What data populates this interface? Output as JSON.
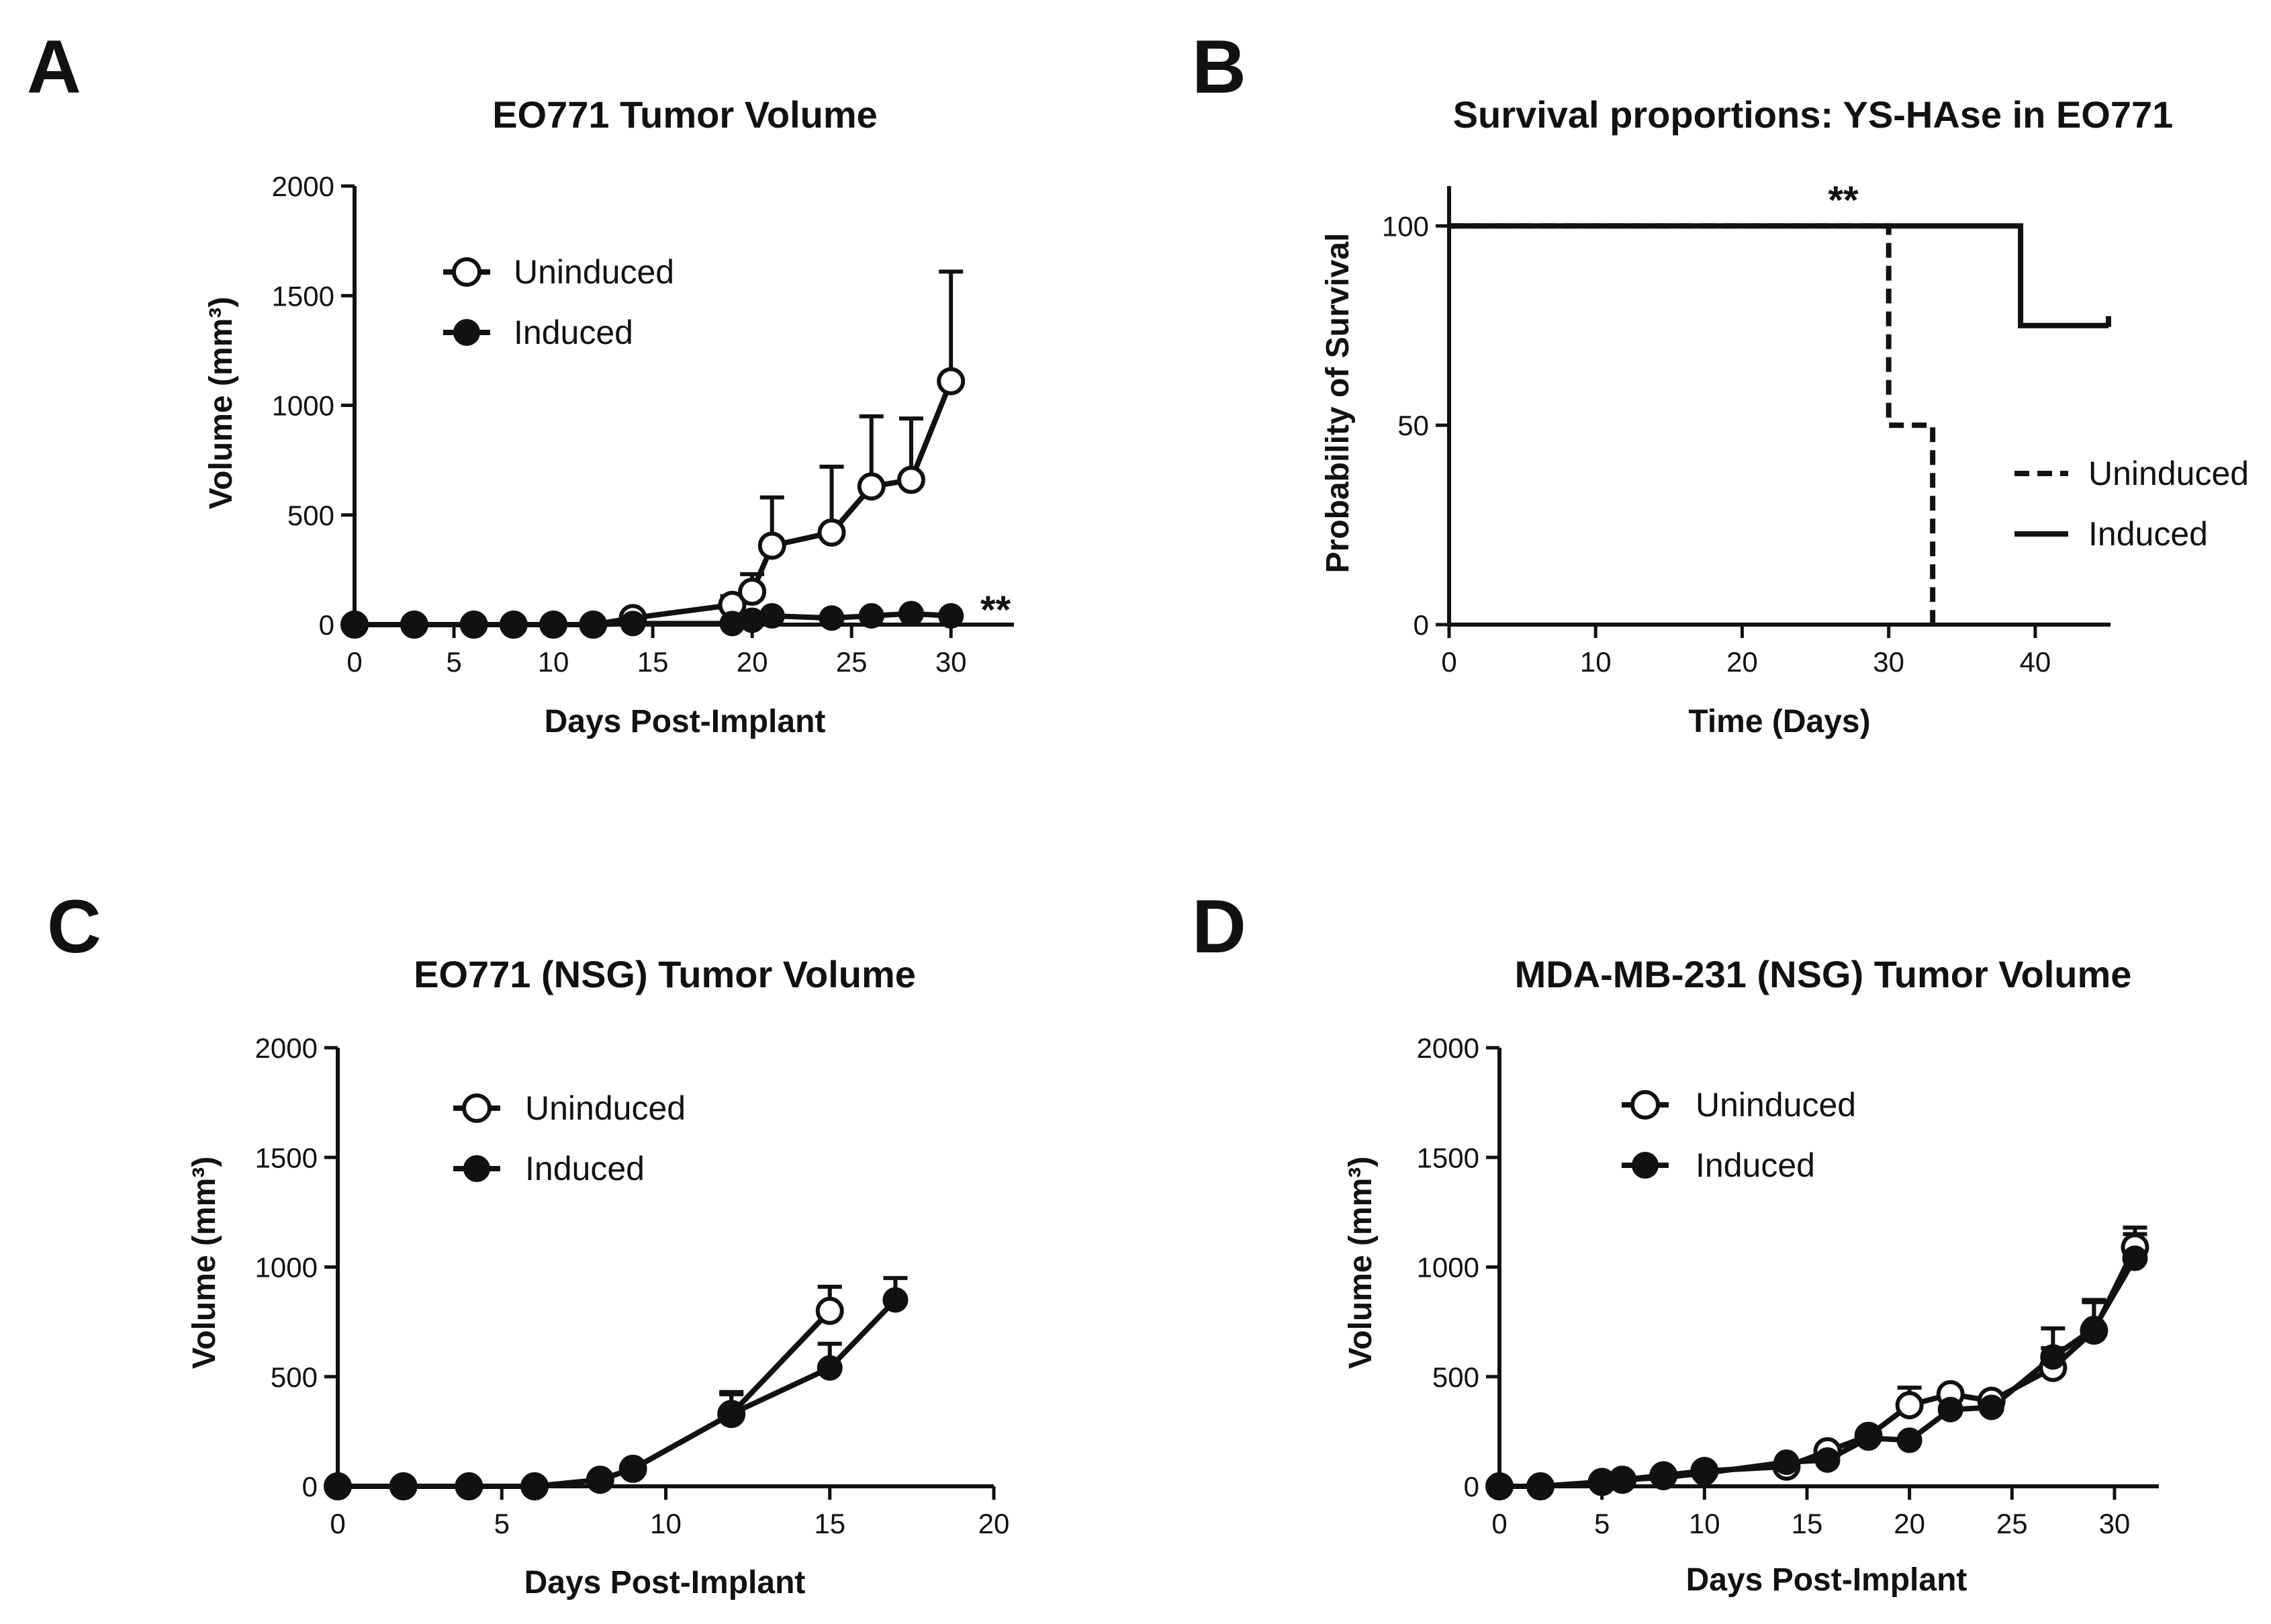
{
  "colors": {
    "ink": "#111111",
    "background": "#ffffff"
  },
  "panels": [
    {
      "id": "A",
      "letter": "A"
    },
    {
      "id": "B",
      "letter": "B"
    },
    {
      "id": "C",
      "letter": "C"
    },
    {
      "id": "D",
      "letter": "D"
    }
  ],
  "chart_data": [
    {
      "panel": "A",
      "type": "line",
      "title": "EO771 Tumor Volume",
      "xlabel": "Days Post-Implant",
      "ylabel": "Volume (mm³)",
      "xlim": [
        0,
        33
      ],
      "ylim": [
        0,
        2000
      ],
      "xticks": [
        0,
        5,
        10,
        15,
        20,
        25,
        30
      ],
      "yticks": [
        0,
        500,
        1000,
        1500,
        2000
      ],
      "legend_position": "top-left",
      "annotation": "**",
      "series": [
        {
          "name": "Uninduced",
          "marker": "open-circle",
          "x": [
            0,
            3,
            6,
            8,
            10,
            12,
            14,
            19,
            20,
            21,
            24,
            26,
            28,
            30
          ],
          "y": [
            0,
            0,
            0,
            0,
            0,
            0,
            30,
            90,
            150,
            360,
            420,
            630,
            660,
            1110
          ],
          "err": [
            0,
            0,
            0,
            0,
            0,
            0,
            10,
            40,
            80,
            220,
            300,
            320,
            280,
            500
          ]
        },
        {
          "name": "Induced",
          "marker": "filled-circle",
          "x": [
            0,
            3,
            6,
            8,
            10,
            12,
            14,
            19,
            20,
            21,
            24,
            26,
            28,
            30
          ],
          "y": [
            0,
            0,
            0,
            0,
            0,
            0,
            5,
            5,
            20,
            40,
            30,
            40,
            50,
            40
          ],
          "err": [
            0,
            0,
            0,
            0,
            0,
            0,
            0,
            0,
            0,
            0,
            0,
            0,
            0,
            0
          ]
        }
      ]
    },
    {
      "panel": "B",
      "type": "line",
      "subtype": "kaplan-meier",
      "title": "Survival proportions: YS-HAse in EO771",
      "xlabel": "Time (Days)",
      "ylabel": "Probability of Survival",
      "xlim": [
        0,
        45
      ],
      "ylim": [
        0,
        110
      ],
      "xticks": [
        0,
        10,
        20,
        30,
        40
      ],
      "yticks": [
        0,
        50,
        100
      ],
      "legend_position": "right",
      "annotation": "**",
      "series": [
        {
          "name": "Uninduced",
          "style": "dashed",
          "x": [
            0,
            30,
            30,
            33,
            33
          ],
          "y": [
            100,
            100,
            50,
            50,
            0
          ]
        },
        {
          "name": "Induced",
          "style": "solid",
          "x": [
            0,
            39,
            39,
            45
          ],
          "y": [
            100,
            100,
            75,
            75
          ]
        }
      ]
    },
    {
      "panel": "C",
      "type": "line",
      "title": "EO771 (NSG) Tumor Volume",
      "xlabel": "Days Post-Implant",
      "ylabel": "Volume (mm³)",
      "xlim": [
        0,
        20
      ],
      "ylim": [
        0,
        2000
      ],
      "xticks": [
        0,
        5,
        10,
        15,
        20
      ],
      "yticks": [
        0,
        500,
        1000,
        1500,
        2000
      ],
      "legend_position": "top-left",
      "series": [
        {
          "name": "Uninduced",
          "marker": "open-circle",
          "x": [
            0,
            2,
            4,
            6,
            8,
            9,
            12,
            15
          ],
          "y": [
            0,
            0,
            0,
            0,
            30,
            80,
            330,
            800
          ],
          "err": [
            0,
            0,
            0,
            0,
            10,
            20,
            100,
            110
          ]
        },
        {
          "name": "Induced",
          "marker": "filled-circle",
          "x": [
            0,
            2,
            4,
            6,
            8,
            9,
            12,
            15,
            17
          ],
          "y": [
            0,
            0,
            0,
            0,
            30,
            80,
            330,
            540,
            850
          ],
          "err": [
            0,
            0,
            0,
            0,
            10,
            20,
            90,
            110,
            100
          ]
        }
      ]
    },
    {
      "panel": "D",
      "type": "line",
      "title": "MDA-MB-231 (NSG) Tumor Volume",
      "xlabel": "Days Post-Implant",
      "ylabel": "Volume (mm³)",
      "xlim": [
        0,
        32
      ],
      "ylim": [
        0,
        2000
      ],
      "xticks": [
        0,
        5,
        10,
        15,
        20,
        25,
        30
      ],
      "yticks": [
        0,
        500,
        1000,
        1500,
        2000
      ],
      "legend_position": "top-left",
      "series": [
        {
          "name": "Uninduced",
          "marker": "open-circle",
          "x": [
            0,
            2,
            5,
            6,
            8,
            10,
            14,
            16,
            18,
            20,
            22,
            24,
            27,
            29,
            31
          ],
          "y": [
            0,
            0,
            20,
            30,
            50,
            70,
            90,
            160,
            230,
            370,
            420,
            390,
            540,
            710,
            1090
          ],
          "err": [
            0,
            0,
            0,
            0,
            0,
            0,
            0,
            0,
            0,
            80,
            0,
            0,
            90,
            130,
            90
          ]
        },
        {
          "name": "Induced",
          "marker": "filled-circle",
          "x": [
            0,
            2,
            5,
            6,
            8,
            10,
            14,
            16,
            18,
            20,
            22,
            24,
            27,
            29,
            31
          ],
          "y": [
            0,
            0,
            20,
            30,
            40,
            60,
            110,
            120,
            220,
            210,
            350,
            360,
            590,
            720,
            1040
          ],
          "err": [
            0,
            0,
            0,
            0,
            0,
            0,
            0,
            0,
            0,
            0,
            0,
            0,
            130,
            130,
            110
          ]
        }
      ]
    }
  ]
}
